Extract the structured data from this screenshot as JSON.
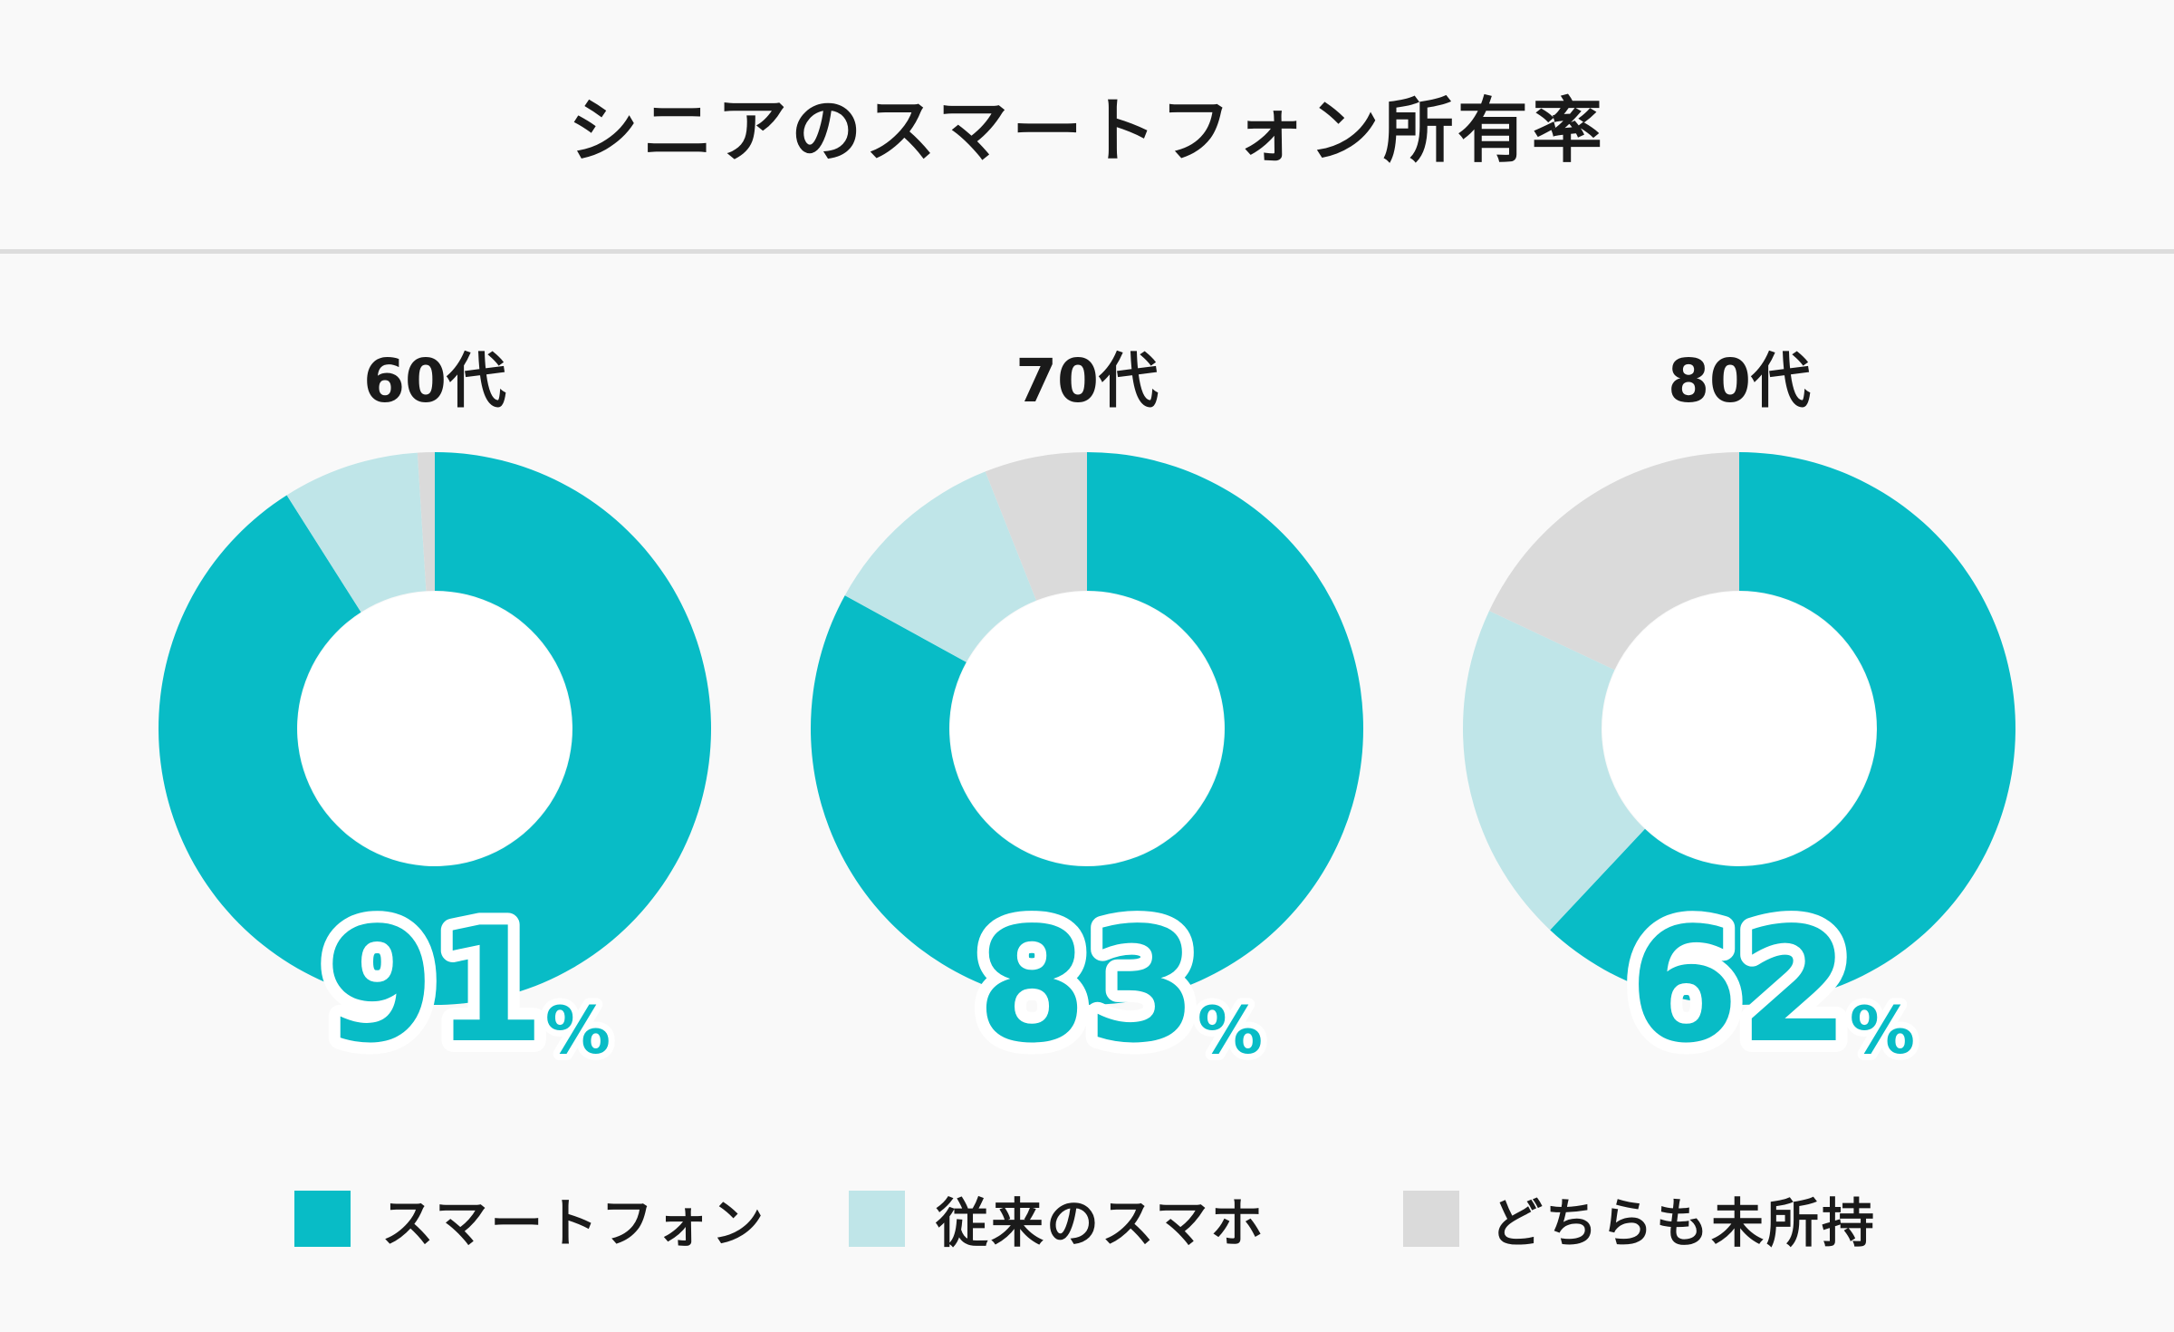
{
  "title": "シニアのスマートフォン所有率",
  "colors": {
    "smartphone": "#08bcc6",
    "legacy_phone": "#bfe5e8",
    "none": "#dadada"
  },
  "legend": [
    {
      "label": "スマートフォン",
      "color": "#08bcc6"
    },
    {
      "label": "従来のスマホ",
      "color": "#bfe5e8"
    },
    {
      "label": "どちらも未所持",
      "color": "#dadada"
    }
  ],
  "chart_data": [
    {
      "type": "pie",
      "title": "60代",
      "headline_value": "91",
      "headline_unit": "%",
      "series": [
        {
          "name": "スマートフォン",
          "value": 91
        },
        {
          "name": "従来のスマホ",
          "value": 8
        },
        {
          "name": "どちらも未所持",
          "value": 1
        }
      ]
    },
    {
      "type": "pie",
      "title": "70代",
      "headline_value": "83",
      "headline_unit": "%",
      "series": [
        {
          "name": "スマートフォン",
          "value": 83
        },
        {
          "name": "従来のスマホ",
          "value": 11
        },
        {
          "name": "どちらも未所持",
          "value": 6
        }
      ]
    },
    {
      "type": "pie",
      "title": "80代",
      "headline_value": "62",
      "headline_unit": "%",
      "series": [
        {
          "name": "スマートフォン",
          "value": 62
        },
        {
          "name": "従来のスマホ",
          "value": 20
        },
        {
          "name": "どちらも未所持",
          "value": 18
        }
      ]
    }
  ]
}
